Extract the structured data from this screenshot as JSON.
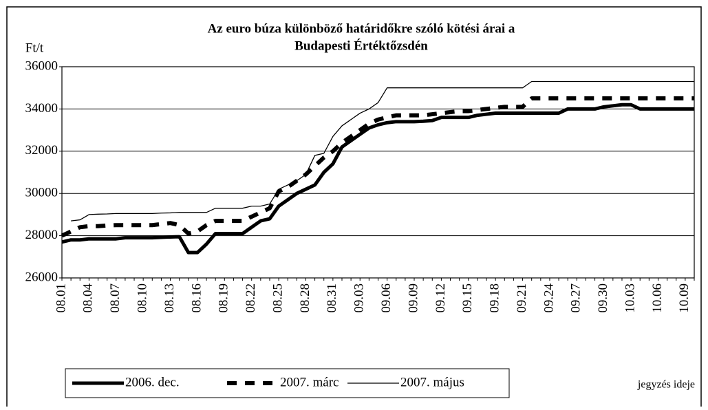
{
  "chart_data": {
    "type": "line",
    "title": "Az euro búza különböző határidőkre szóló kötési árai a",
    "subtitle": "Budapesti Értéktőzsdén",
    "y_label": "Ft/t",
    "x_label": "jegyzés ideje",
    "categories": [
      "08.01",
      null,
      null,
      "08.04",
      null,
      null,
      "08.07",
      null,
      null,
      "08.10",
      null,
      null,
      "08.13",
      null,
      null,
      "08.16",
      null,
      null,
      "08.19",
      null,
      null,
      "08.22",
      null,
      null,
      "08.25",
      null,
      null,
      "08.28",
      null,
      null,
      "08.31",
      null,
      null,
      "09.03",
      null,
      null,
      "09.06",
      null,
      null,
      "09.09",
      null,
      null,
      "09.12",
      null,
      null,
      "09.15",
      null,
      null,
      "09.18",
      null,
      null,
      "09.21",
      null,
      null,
      "09.24",
      null,
      null,
      "09.27",
      null,
      null,
      "09.30",
      null,
      null,
      "10.03",
      null,
      null,
      "10.06",
      null,
      null,
      "10.09",
      null
    ],
    "series": [
      {
        "name": "2006. dec.",
        "color": "#000000",
        "line_width": 5,
        "dashed": false,
        "values": [
          27700,
          27800,
          27800,
          27850,
          27850,
          27850,
          27850,
          27900,
          27900,
          27900,
          27900,
          27920,
          27940,
          27950,
          27200,
          27200,
          27600,
          28100,
          28100,
          28100,
          28100,
          28400,
          28700,
          28800,
          29400,
          29700,
          30000,
          30200,
          30400,
          31000,
          31400,
          32200,
          32500,
          32800,
          33100,
          33250,
          33350,
          33400,
          33400,
          33400,
          33420,
          33450,
          33600,
          33600,
          33600,
          33600,
          33700,
          33750,
          33800,
          33800,
          33800,
          33800,
          33800,
          33800,
          33800,
          33800,
          34000,
          34000,
          34000,
          34000,
          34100,
          34150,
          34200,
          34200,
          34000,
          34000,
          34000,
          34000,
          34000,
          34000,
          34000
        ]
      },
      {
        "name": "2007. márc",
        "color": "#000000",
        "line_width": 6,
        "dashed": true,
        "values": [
          28000,
          28200,
          28400,
          28450,
          28450,
          28480,
          28500,
          28500,
          28500,
          28500,
          28500,
          28550,
          28600,
          28500,
          28100,
          28200,
          28500,
          28700,
          28700,
          28700,
          28700,
          28900,
          29100,
          29300,
          30100,
          30300,
          30600,
          30900,
          31300,
          31700,
          32000,
          32400,
          32700,
          33000,
          33300,
          33500,
          33600,
          33700,
          33700,
          33700,
          33700,
          33750,
          33800,
          33850,
          33900,
          33900,
          33950,
          34000,
          34050,
          34100,
          34100,
          34100,
          34500,
          34500,
          34500,
          34500,
          34500,
          34500,
          34500,
          34500,
          34500,
          34500,
          34500,
          34500,
          34500,
          34500,
          34500,
          34500,
          34500,
          34500,
          34500
        ]
      },
      {
        "name": "2007. május",
        "color": "#000000",
        "line_width": 1.3,
        "dashed": false,
        "values": [
          null,
          28700,
          28750,
          29000,
          29020,
          29030,
          29050,
          29050,
          29050,
          29050,
          29050,
          29070,
          29080,
          29100,
          29100,
          29100,
          29100,
          29300,
          29300,
          29300,
          29300,
          29400,
          29400,
          29500,
          30200,
          30400,
          30600,
          30900,
          31800,
          31900,
          32700,
          33200,
          33500,
          33800,
          34000,
          34300,
          35000,
          35000,
          35000,
          35000,
          35000,
          35000,
          35000,
          35000,
          35000,
          35000,
          35000,
          35000,
          35000,
          35000,
          35000,
          35000,
          35300,
          35300,
          35300,
          35300,
          35300,
          35300,
          35300,
          35300,
          35300,
          35300,
          35300,
          35300,
          35300,
          35300,
          35300,
          35300,
          35300,
          35300,
          35300
        ]
      }
    ],
    "ylim": [
      26000,
      36000
    ],
    "yticks": [
      26000,
      28000,
      30000,
      32000,
      34000,
      36000
    ],
    "grid": true,
    "legend": "bottom"
  }
}
